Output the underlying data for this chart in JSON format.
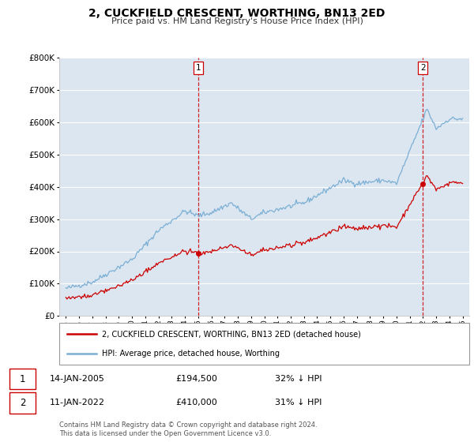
{
  "title": "2, CUCKFIELD CRESCENT, WORTHING, BN13 2ED",
  "subtitle": "Price paid vs. HM Land Registry's House Price Index (HPI)",
  "legend_line1": "2, CUCKFIELD CRESCENT, WORTHING, BN13 2ED (detached house)",
  "legend_line2": "HPI: Average price, detached house, Worthing",
  "sale1_date": "14-JAN-2005",
  "sale1_price": "£194,500",
  "sale1_hpi": "32% ↓ HPI",
  "sale2_date": "11-JAN-2022",
  "sale2_price": "£410,000",
  "sale2_hpi": "31% ↓ HPI",
  "footer": "Contains HM Land Registry data © Crown copyright and database right 2024.\nThis data is licensed under the Open Government Licence v3.0.",
  "hpi_color": "#7bafd4",
  "price_color": "#cc0000",
  "vline_color": "#cc0000",
  "plot_bg_color": "#dce6f1",
  "grid_color": "#ffffff",
  "ylim": [
    0,
    800000
  ],
  "yticks": [
    0,
    100000,
    200000,
    300000,
    400000,
    500000,
    600000,
    700000,
    800000
  ],
  "sale1_year": 2005.04,
  "sale2_year": 2022.04,
  "sale1_price_val": 194500,
  "sale2_price_val": 410000
}
